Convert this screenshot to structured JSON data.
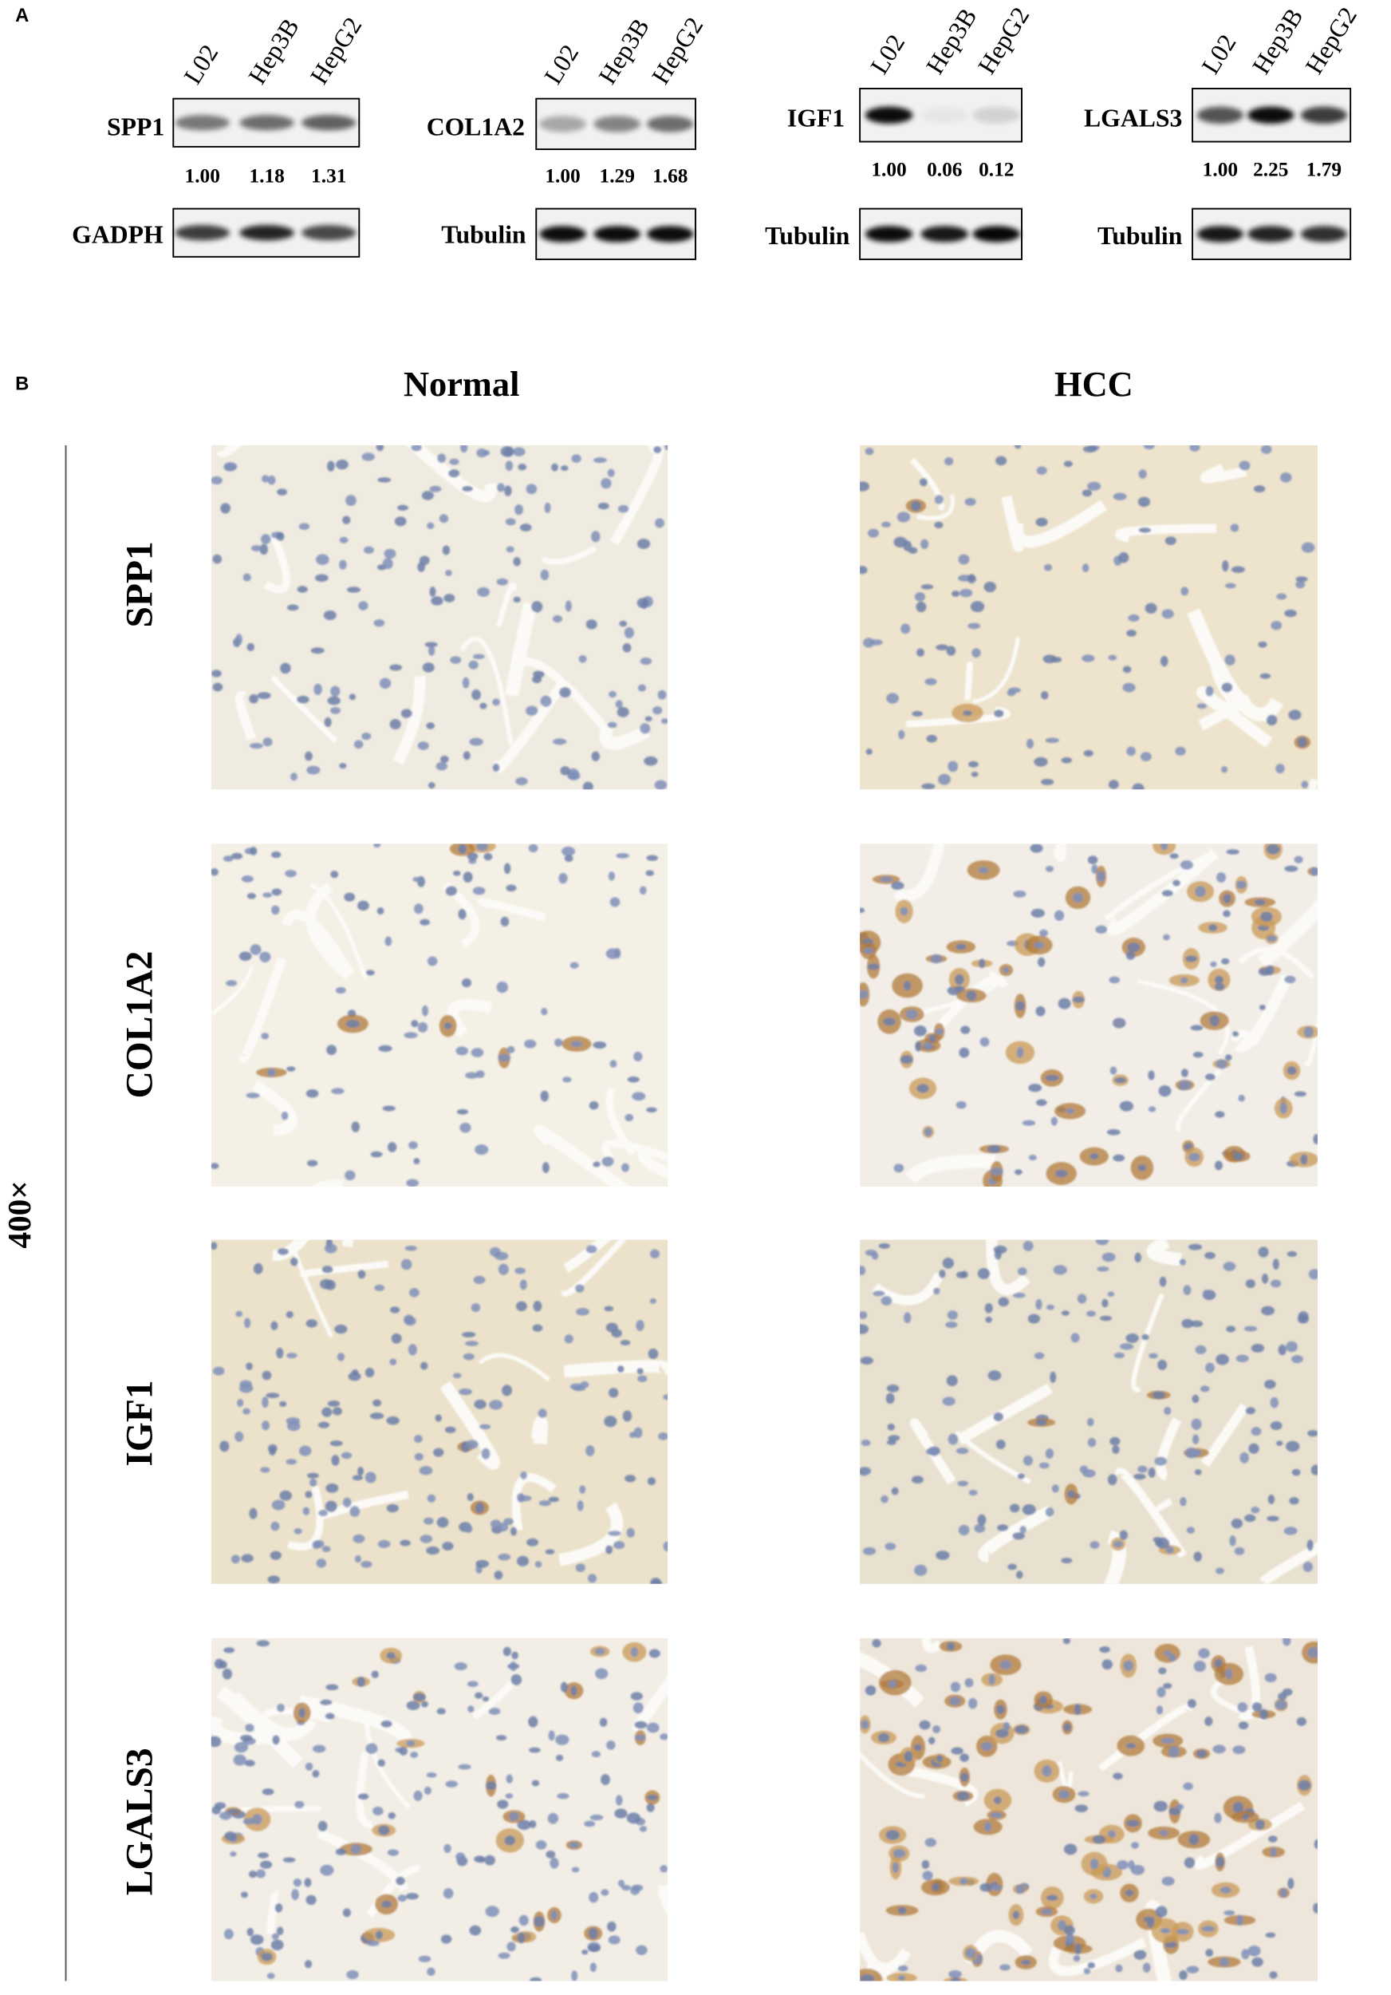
{
  "panel_a": {
    "label": "A",
    "blots": [
      {
        "lanes": [
          "L02",
          "Hep3B",
          "HepG2"
        ],
        "target": "SPP1",
        "ratios": [
          "1.00",
          "1.18",
          "1.31"
        ],
        "control": "GADPH"
      },
      {
        "lanes": [
          "L02",
          "Hep3B",
          "HepG2"
        ],
        "target": "COL1A2",
        "ratios": [
          "1.00",
          "1.29",
          "1.68"
        ],
        "control": "Tubulin"
      },
      {
        "lanes": [
          "L02",
          "Hep3B",
          "HepG2"
        ],
        "target": "IGF1",
        "ratios": [
          "1.00",
          "0.06",
          "0.12"
        ],
        "control": "Tubulin"
      },
      {
        "lanes": [
          "L02",
          "Hep3B",
          "HepG2"
        ],
        "target": "LGALS3",
        "ratios": [
          "1.00",
          "2.25",
          "1.79"
        ],
        "control": "Tubulin"
      }
    ]
  },
  "panel_b": {
    "label": "B",
    "magnification": "400×",
    "columns": [
      "Normal",
      "HCC"
    ],
    "rows": [
      "SPP1",
      "COL1A2",
      "IGF1",
      "LGALS3"
    ]
  }
}
